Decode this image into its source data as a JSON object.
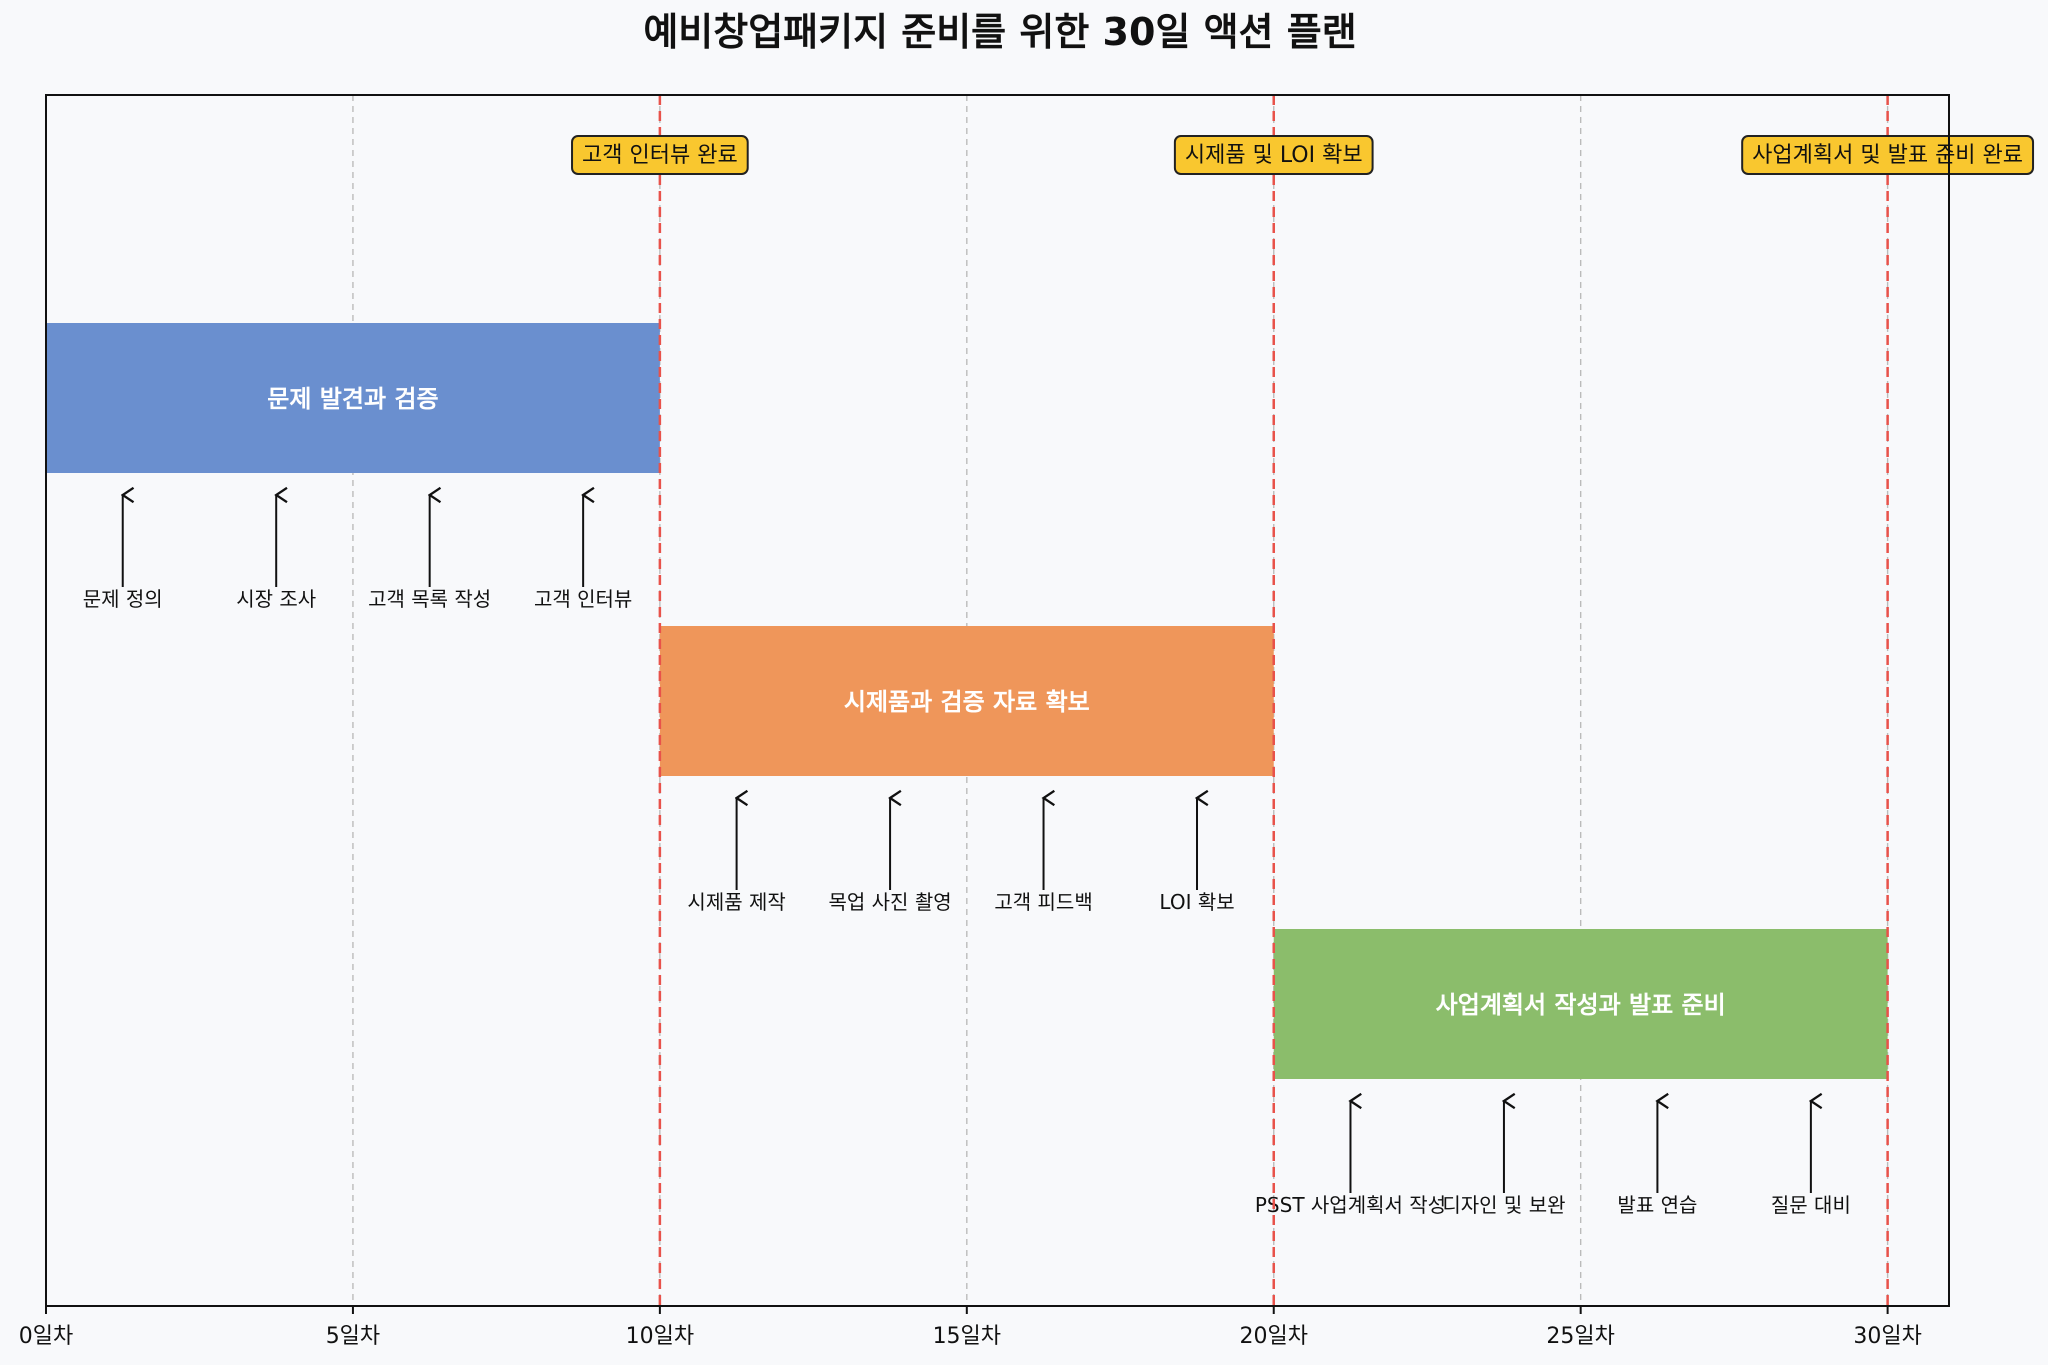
{
  "chart_data": {
    "type": "gantt",
    "title": "예비창업패키지 준비를 위한 30일 액션 플랜",
    "xlim": [
      0,
      31
    ],
    "x_ticks": [
      0,
      5,
      10,
      15,
      20,
      25,
      30
    ],
    "x_tick_labels": [
      "0일차",
      "5일차",
      "10일차",
      "15일차",
      "20일차",
      "25일차",
      "30일차"
    ],
    "grid": "vertical-dashed",
    "phases": [
      {
        "name": "문제 발견과 검증",
        "start": 0,
        "end": 10,
        "color": "#6a8fcf",
        "tasks": [
          {
            "label": "문제 정의",
            "day": 1.25
          },
          {
            "label": "시장 조사",
            "day": 3.75
          },
          {
            "label": "고객 목록 작성",
            "day": 6.25
          },
          {
            "label": "고객 인터뷰",
            "day": 8.75
          }
        ]
      },
      {
        "name": "시제품과 검증 자료 확보",
        "start": 10,
        "end": 20,
        "color": "#ef965a",
        "tasks": [
          {
            "label": "시제품 제작",
            "day": 11.25
          },
          {
            "label": "목업 사진 촬영",
            "day": 13.75
          },
          {
            "label": "고객 피드백",
            "day": 16.25
          },
          {
            "label": "LOI 확보",
            "day": 18.75
          }
        ]
      },
      {
        "name": "사업계획서 작성과 발표 준비",
        "start": 20,
        "end": 30,
        "color": "#8bbd6b",
        "tasks": [
          {
            "label": "PSST 사업계획서 작성",
            "day": 21.25
          },
          {
            "label": "디자인 및 보완",
            "day": 23.75
          },
          {
            "label": "발표 연습",
            "day": 26.25
          },
          {
            "label": "질문 대비",
            "day": 28.75
          }
        ]
      }
    ],
    "milestones": [
      {
        "day": 10,
        "label": "고객 인터뷰 완료"
      },
      {
        "day": 20,
        "label": "시제품 및 LOI 확보"
      },
      {
        "day": 30,
        "label": "사업계획서 및 발표 준비 완료"
      }
    ],
    "colors": {
      "milestone_line": "#e8524a",
      "milestone_box_fill": "#f9c72f",
      "milestone_box_stroke": "#222222",
      "grid": "#bbbbbb",
      "axis": "#111111",
      "arrow": "#111111"
    }
  }
}
